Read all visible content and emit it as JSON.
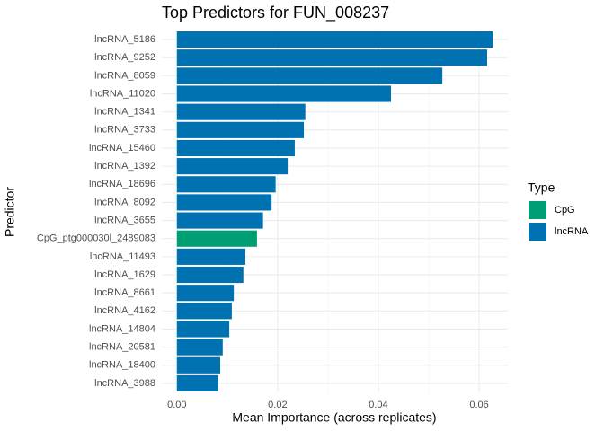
{
  "chart_data": {
    "type": "bar",
    "orientation": "horizontal",
    "title": "Top Predictors for FUN_008237",
    "x_label": "Mean Importance (across replicates)",
    "y_label": "Predictor",
    "legend_title": "Type",
    "categories": [
      "lncRNA_5186",
      "lncRNA_9252",
      "lncRNA_8059",
      "lncRNA_11020",
      "lncRNA_1341",
      "lncRNA_3733",
      "lncRNA_15460",
      "lncRNA_1392",
      "lncRNA_18696",
      "lncRNA_8092",
      "lncRNA_3655",
      "CpG_ptg000030l_2489083",
      "lncRNA_11493",
      "lncRNA_1629",
      "lncRNA_8661",
      "lncRNA_4162",
      "lncRNA_14804",
      "lncRNA_20581",
      "lncRNA_18400",
      "lncRNA_3988"
    ],
    "series": [
      {
        "name": "CpG",
        "color": "#009E73",
        "values": [
          null,
          null,
          null,
          null,
          null,
          null,
          null,
          null,
          null,
          null,
          null,
          0.0159,
          null,
          null,
          null,
          null,
          null,
          null,
          null,
          null
        ]
      },
      {
        "name": "lncRNA",
        "color": "#0072B2",
        "values": [
          0.0627,
          0.0616,
          0.0527,
          0.0425,
          0.0255,
          0.0252,
          0.0234,
          0.022,
          0.0196,
          0.0188,
          0.0171,
          null,
          0.0136,
          0.0132,
          0.0113,
          0.0109,
          0.0104,
          0.0091,
          0.0086,
          0.0082
        ]
      }
    ],
    "xlim": [
      -0.003,
      0.0657
    ],
    "xticks": [
      {
        "value": 0,
        "label": "0.00"
      },
      {
        "value": 0.02,
        "label": "0.02"
      },
      {
        "value": 0.04,
        "label": "0.04"
      },
      {
        "value": 0.06,
        "label": "0.06"
      }
    ],
    "minor_xticks": [
      0.01,
      0.03,
      0.05
    ],
    "grid": true,
    "legend_position": "right"
  }
}
